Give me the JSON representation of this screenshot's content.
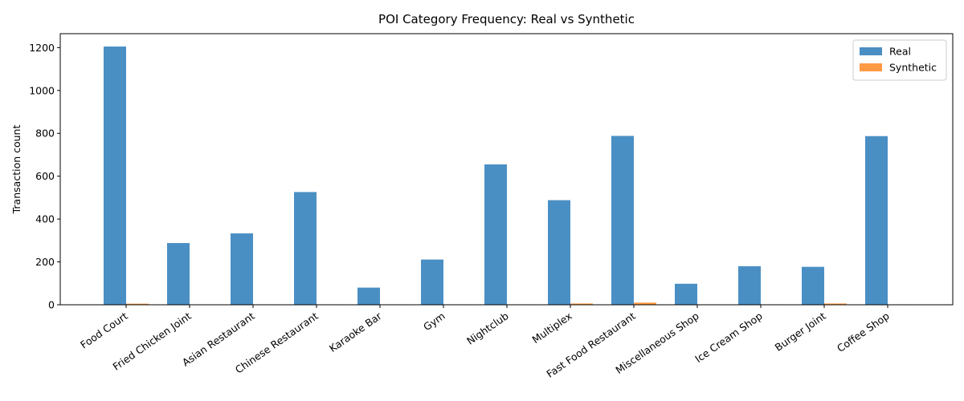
{
  "chart_data": {
    "type": "bar",
    "title": "POI Category Frequency: Real vs Synthetic",
    "xlabel": "",
    "ylabel": "Transaction count",
    "ylim": [
      0,
      1265
    ],
    "yticks": [
      0,
      200,
      400,
      600,
      800,
      1000,
      1200
    ],
    "grid": false,
    "legend_position": "top-right",
    "categories": [
      "Food Court",
      "Fried Chicken Joint",
      "Asian Restaurant",
      "Chinese Restaurant",
      "Karaoke Bar",
      "Gym",
      "Nightclub",
      "Multiplex",
      "Fast Food Restaurant",
      "Miscellaneous Shop",
      "Ice Cream Shop",
      "Burger Joint",
      "Coffee Shop"
    ],
    "series": [
      {
        "name": "Real",
        "color": "#4a8fc4",
        "values": [
          1205,
          288,
          333,
          526,
          80,
          211,
          655,
          488,
          788,
          98,
          180,
          177,
          787
        ]
      },
      {
        "name": "Synthetic",
        "color": "#ff9a44",
        "values": [
          5,
          0,
          2,
          2,
          2,
          2,
          2,
          6,
          10,
          2,
          2,
          6,
          2
        ]
      }
    ]
  }
}
